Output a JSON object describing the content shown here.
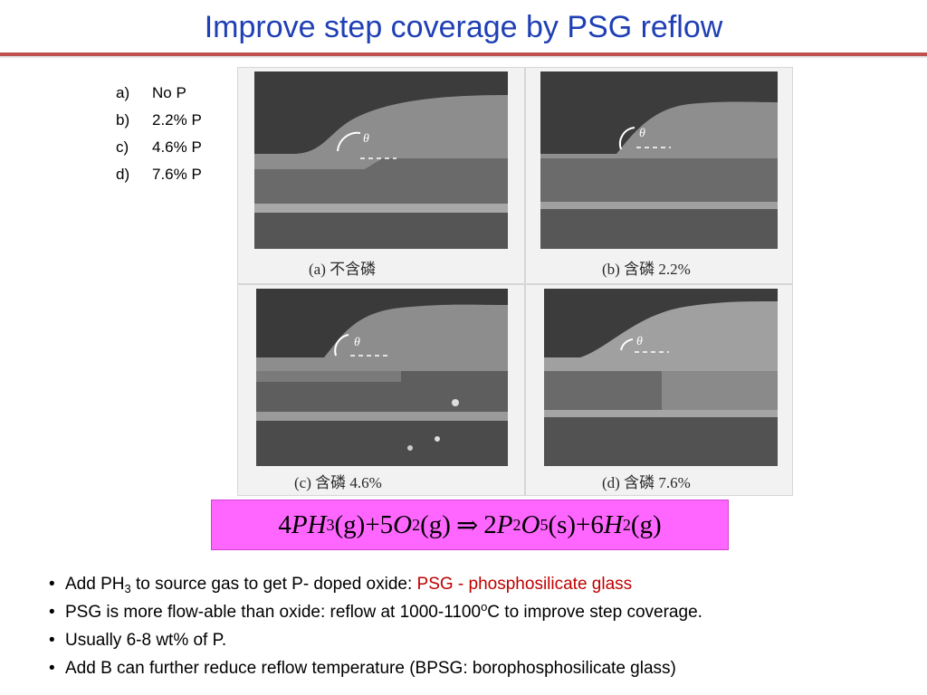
{
  "title": "Improve step coverage by PSG reflow",
  "legend": [
    {
      "marker": "a)",
      "text": "No P"
    },
    {
      "marker": "b)",
      "text": "2.2% P"
    },
    {
      "marker": "c)",
      "text": "4.6% P"
    },
    {
      "marker": "d)",
      "text": "7.6% P"
    }
  ],
  "panels": [
    {
      "caption": "(a) 不含磷",
      "angle_label": "θ"
    },
    {
      "caption": "(b) 含磷 2.2%",
      "angle_label": "θ"
    },
    {
      "caption": "(c) 含磷 4.6%",
      "angle_label": "θ"
    },
    {
      "caption": "(d) 含磷 7.6%",
      "angle_label": "θ"
    }
  ],
  "equation": {
    "c1": "4",
    "t1": "PH",
    "s1": "3",
    "p1": "(g)",
    "plus1": "+",
    "c2": "5",
    "t2": "O",
    "s2": "2",
    "p2": "(g)",
    "arrow": "⇒",
    "c3": "2",
    "t3a": "P",
    "s3a": "2",
    "t3b": "O",
    "s3b": "5",
    "p3": "(s)",
    "plus2": "+",
    "c4": "6",
    "t4": "H",
    "s4": "2",
    "p4": "(g)"
  },
  "bullets": {
    "b1_a": "Add PH",
    "b1_sub": "3",
    "b1_b": " to source gas to get P- doped oxide: ",
    "b1_red": "PSG - phosphosilicate glass",
    "b2_a": "PSG is more flow-able than oxide: reflow at 1000-1100",
    "b2_sup": "o",
    "b2_b": "C to improve step coverage.",
    "b3": "Usually 6-8 wt% of P.",
    "b4": "Add B can further reduce reflow temperature (BPSG: borophosphosilicate glass)"
  },
  "colors": {
    "title": "#1f3fb4",
    "rule": "#c0504d",
    "equation_bg": "#ff66ff",
    "highlight": "#c00000"
  }
}
